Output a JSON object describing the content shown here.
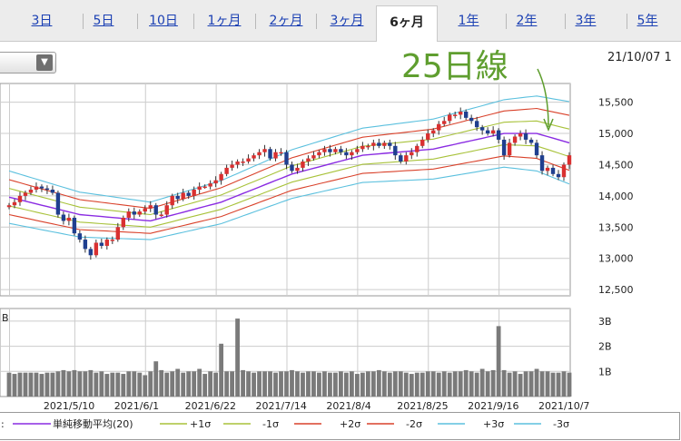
{
  "tabs": [
    {
      "label": "3日",
      "active": false
    },
    {
      "label": "5日",
      "active": false
    },
    {
      "label": "10日",
      "active": false
    },
    {
      "label": "1ヶ月",
      "active": false
    },
    {
      "label": "2ヶ月",
      "active": false
    },
    {
      "label": "3ヶ月",
      "active": false
    },
    {
      "label": "6ヶ月",
      "active": true
    },
    {
      "label": "1年",
      "active": false
    },
    {
      "label": "2年",
      "active": false
    },
    {
      "label": "3年",
      "active": false
    },
    {
      "label": "5年",
      "active": false
    }
  ],
  "dropdown": {
    "value": ""
  },
  "date_label": "21/10/07 1",
  "annotation": "25日線",
  "legend": {
    "prefix": ":",
    "items": [
      {
        "label": "単純移動平均(20)",
        "color": "#8a2be2"
      },
      {
        "label": "+1σ",
        "color": "#a8c23a"
      },
      {
        "label": "-1σ",
        "color": "#a8c23a"
      },
      {
        "label": "+2σ",
        "color": "#d9412a"
      },
      {
        "label": "-2σ",
        "color": "#d9412a"
      },
      {
        "label": "+3σ",
        "color": "#5bc0de"
      },
      {
        "label": "-3σ",
        "color": "#5bc0de"
      }
    ]
  },
  "colors": {
    "up_candle": "#d93030",
    "down_candle": "#1f3f8f",
    "volume": "#7a7a7a",
    "grid": "#cccccc"
  },
  "chart_data": [
    {
      "type": "candlestick",
      "title": "",
      "indicator": "Bollinger Bands (SMA 20, ±1σ ±2σ ±3σ)",
      "ylim": [
        12400,
        15800
      ],
      "yticks": [
        12500,
        13000,
        13500,
        14000,
        14500,
        15000,
        15500
      ],
      "ytick_labels": [
        "12,500",
        "13,000",
        "13,500",
        "14,000",
        "14,500",
        "15,000",
        "15,500"
      ],
      "xtick_labels": [
        "2021/5/10",
        "2021/6/1",
        "2021/6/22",
        "2021/7/14",
        "2021/8/4",
        "2021/8/25",
        "2021/9/16",
        "2021/10/7"
      ],
      "close_series": [
        [
          0,
          13850
        ],
        [
          1,
          13900
        ],
        [
          2,
          14000
        ],
        [
          3,
          14050
        ],
        [
          4,
          14100
        ],
        [
          5,
          14150
        ],
        [
          6,
          14120
        ],
        [
          7,
          14100
        ],
        [
          8,
          14050
        ],
        [
          9,
          13700
        ],
        [
          10,
          13600
        ],
        [
          11,
          13650
        ],
        [
          12,
          13400
        ],
        [
          13,
          13300
        ],
        [
          14,
          13150
        ],
        [
          15,
          13050
        ],
        [
          16,
          13250
        ],
        [
          17,
          13200
        ],
        [
          18,
          13300
        ],
        [
          19,
          13300
        ],
        [
          20,
          13500
        ],
        [
          21,
          13650
        ],
        [
          22,
          13750
        ],
        [
          23,
          13700
        ],
        [
          24,
          13750
        ],
        [
          25,
          13800
        ],
        [
          26,
          13850
        ],
        [
          27,
          13700
        ],
        [
          28,
          13700
        ],
        [
          29,
          13850
        ],
        [
          30,
          14000
        ],
        [
          31,
          13950
        ],
        [
          32,
          14050
        ],
        [
          33,
          14000
        ],
        [
          34,
          14100
        ],
        [
          35,
          14150
        ],
        [
          36,
          14150
        ],
        [
          37,
          14200
        ],
        [
          38,
          14250
        ],
        [
          39,
          14350
        ],
        [
          40,
          14450
        ],
        [
          41,
          14500
        ],
        [
          42,
          14550
        ],
        [
          43,
          14550
        ],
        [
          44,
          14600
        ],
        [
          45,
          14650
        ],
        [
          46,
          14700
        ],
        [
          47,
          14750
        ],
        [
          48,
          14600
        ],
        [
          49,
          14700
        ],
        [
          50,
          14700
        ],
        [
          51,
          14500
        ],
        [
          52,
          14400
        ],
        [
          53,
          14450
        ],
        [
          54,
          14550
        ],
        [
          55,
          14600
        ],
        [
          56,
          14650
        ],
        [
          57,
          14700
        ],
        [
          58,
          14750
        ],
        [
          59,
          14700
        ],
        [
          60,
          14750
        ],
        [
          61,
          14700
        ],
        [
          62,
          14650
        ],
        [
          63,
          14700
        ],
        [
          64,
          14750
        ],
        [
          65,
          14800
        ],
        [
          66,
          14800
        ],
        [
          67,
          14850
        ],
        [
          68,
          14800
        ],
        [
          69,
          14850
        ],
        [
          70,
          14800
        ],
        [
          71,
          14650
        ],
        [
          72,
          14550
        ],
        [
          73,
          14650
        ],
        [
          74,
          14700
        ],
        [
          75,
          14800
        ],
        [
          76,
          14900
        ],
        [
          77,
          15000
        ],
        [
          78,
          15050
        ],
        [
          79,
          15150
        ],
        [
          80,
          15200
        ],
        [
          81,
          15300
        ],
        [
          82,
          15300
        ],
        [
          83,
          15350
        ],
        [
          84,
          15250
        ],
        [
          85,
          15200
        ],
        [
          86,
          15100
        ],
        [
          87,
          15050
        ],
        [
          88,
          15000
        ],
        [
          89,
          15050
        ],
        [
          90,
          14900
        ],
        [
          91,
          14650
        ],
        [
          92,
          14850
        ],
        [
          93,
          14950
        ],
        [
          94,
          15000
        ],
        [
          95,
          14900
        ],
        [
          96,
          14850
        ],
        [
          97,
          14650
        ],
        [
          98,
          14400
        ],
        [
          99,
          14450
        ],
        [
          100,
          14350
        ],
        [
          101,
          14300
        ],
        [
          102,
          14500
        ],
        [
          103,
          14650
        ]
      ],
      "sma20": [
        [
          0,
          13980
        ],
        [
          13,
          13700
        ],
        [
          26,
          13600
        ],
        [
          39,
          13900
        ],
        [
          52,
          14350
        ],
        [
          65,
          14650
        ],
        [
          78,
          14750
        ],
        [
          91,
          15000
        ],
        [
          97,
          15000
        ],
        [
          103,
          14850
        ]
      ],
      "sigma1": [
        [
          0,
          140
        ],
        [
          26,
          100
        ],
        [
          52,
          130
        ],
        [
          78,
          160
        ],
        [
          91,
          180
        ],
        [
          103,
          220
        ]
      ],
      "volume": {
        "ylim": [
          0,
          3.5
        ],
        "yticks": [
          1,
          2,
          3
        ],
        "ytick_labels": [
          "1B",
          "2B",
          "3B"
        ],
        "values": [
          0.95,
          0.9,
          0.95,
          0.95,
          0.95,
          0.95,
          0.9,
          0.95,
          0.95,
          1.0,
          1.05,
          1.0,
          1.05,
          1.0,
          1.0,
          1.05,
          0.95,
          1.0,
          0.9,
          0.95,
          0.95,
          0.9,
          1.0,
          1.0,
          0.95,
          0.85,
          1.0,
          1.4,
          1.05,
          0.95,
          1.0,
          1.1,
          0.95,
          1.0,
          1.0,
          1.1,
          0.9,
          1.0,
          0.95,
          2.1,
          1.0,
          1.0,
          3.1,
          1.05,
          1.0,
          0.95,
          1.0,
          1.0,
          1.0,
          0.95,
          1.0,
          1.0,
          1.05,
          1.0,
          0.95,
          1.0,
          1.0,
          0.95,
          1.0,
          0.95,
          0.95,
          1.0,
          0.95,
          1.0,
          0.9,
          0.95,
          1.0,
          1.0,
          1.05,
          1.0,
          0.95,
          1.0,
          1.0,
          0.95,
          0.9,
          0.95,
          0.95,
          1.0,
          1.0,
          0.95,
          1.0,
          0.95,
          1.0,
          1.0,
          1.05,
          1.0,
          0.95,
          1.1,
          1.0,
          1.05,
          2.8,
          1.05,
          0.95,
          1.0,
          0.9,
          1.0,
          1.0,
          1.1,
          1.0,
          1.0,
          0.95,
          0.95,
          1.0,
          0.95
        ]
      }
    }
  ]
}
